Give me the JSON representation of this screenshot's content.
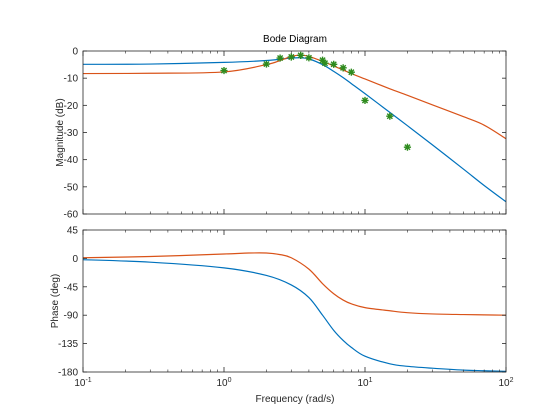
{
  "chart_data": {
    "type": "line",
    "title": "Bode Diagram",
    "xlabel": "Frequency  (rad/s)",
    "xscale": "log",
    "xlim": [
      0.1,
      100
    ],
    "x_tick_labels": [
      "10^-1",
      "10^0",
      "10^1",
      "10^2"
    ],
    "grid": false,
    "colors": {
      "series_a": "#0072bd",
      "series_b": "#d95319",
      "markers": "#2e8b1e",
      "marker_fill": "#c8d400"
    },
    "panels": [
      {
        "ylabel": "Magnitude (dB)",
        "ylim": [
          -60,
          0
        ],
        "yticks": [
          0,
          -10,
          -20,
          -30,
          -40,
          -50,
          -60
        ],
        "series": [
          {
            "color": "#0072bd",
            "x": [
              0.1,
              0.3,
              1,
              2,
              3,
              3.5,
              4,
              5,
              6,
              7,
              8,
              10,
              15,
              20,
              30,
              50,
              70,
              100
            ],
            "values": [
              -4.9,
              -4.8,
              -4.2,
              -3.5,
              -2.6,
              -2.5,
              -2.9,
              -5.0,
              -7.5,
              -9.8,
              -12.0,
              -15.7,
              -22.6,
              -27.5,
              -34.5,
              -43.5,
              -49.5,
              -55.5
            ]
          },
          {
            "color": "#d95319",
            "x": [
              0.1,
              0.3,
              1,
              2,
              2.5,
              3,
              3.5,
              4,
              5,
              6,
              7,
              8,
              10,
              15,
              20,
              30,
              50,
              70,
              100
            ],
            "values": [
              -8.3,
              -8.2,
              -7.7,
              -5.0,
              -3.5,
              -2.0,
              -1.5,
              -2.0,
              -3.8,
              -5.5,
              -7.0,
              -8.3,
              -10.3,
              -13.9,
              -16.3,
              -19.8,
              -24.2,
              -27.3,
              -32.3
            ]
          },
          {
            "type": "scatter",
            "marker": "*",
            "color": "#2e8b1e",
            "x": [
              1,
              2,
              2.5,
              3,
              3.5,
              4,
              5,
              5.2,
              6,
              7,
              8,
              10,
              15,
              20
            ],
            "values": [
              -7.2,
              -4.8,
              -2.6,
              -2.2,
              -1.6,
              -2.5,
              -3.4,
              -4.5,
              -4.9,
              -6.2,
              -7.8,
              -18.2,
              -24.0,
              -35.4
            ]
          }
        ]
      },
      {
        "ylabel": "Phase (deg)",
        "ylim": [
          -180,
          45
        ],
        "yticks": [
          45,
          0,
          -45,
          -90,
          -135,
          -180
        ],
        "series": [
          {
            "color": "#0072bd",
            "x": [
              0.1,
              0.3,
              1,
              2,
              3,
              4,
              5,
              6,
              7,
              8,
              10,
              15,
              20,
              30,
              50,
              70,
              100
            ],
            "values": [
              -2,
              -6,
              -15,
              -27,
              -42,
              -62,
              -90,
              -114,
              -130,
              -141,
              -155,
              -167,
              -171,
              -174,
              -177,
              -178,
              -179
            ]
          },
          {
            "color": "#d95319",
            "x": [
              0.1,
              0.3,
              1,
              1.5,
              2,
              2.5,
              3,
              4,
              5,
              6,
              7,
              8,
              10,
              15,
              20,
              30,
              50,
              70,
              100
            ],
            "values": [
              1,
              3,
              7,
              8.5,
              8.5,
              6,
              1,
              -17,
              -40,
              -56,
              -66,
              -72,
              -78,
              -83,
              -86,
              -88,
              -89,
              -89.5,
              -90
            ]
          }
        ]
      }
    ]
  }
}
